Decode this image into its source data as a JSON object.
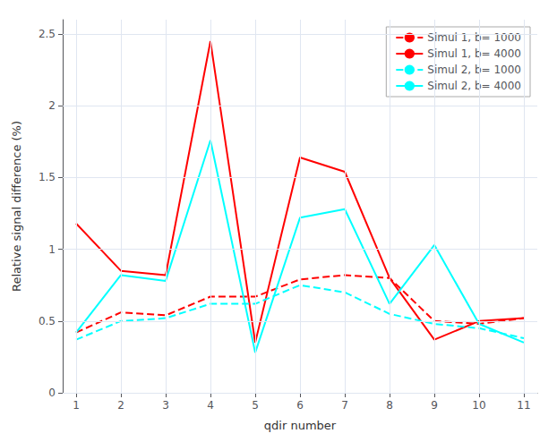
{
  "chart_data": {
    "type": "line",
    "xlabel": "qdir number",
    "ylabel": "Relative signal difference (%)",
    "x": [
      1,
      2,
      3,
      4,
      5,
      6,
      7,
      8,
      9,
      10,
      11
    ],
    "series": [
      {
        "name": "Simul 1, b= 1000",
        "color": "#ff0000",
        "line_style": "dashed",
        "values": [
          0.42,
          0.56,
          0.54,
          0.67,
          0.67,
          0.79,
          0.82,
          0.8,
          0.5,
          0.48,
          0.52
        ]
      },
      {
        "name": "Simul 1, b= 4000",
        "color": "#ff0000",
        "line_style": "solid",
        "values": [
          1.18,
          0.85,
          0.82,
          2.45,
          0.35,
          1.64,
          1.54,
          0.8,
          0.37,
          0.5,
          0.52
        ]
      },
      {
        "name": "Simul 2, b= 1000",
        "color": "#00ffff",
        "line_style": "dashed",
        "values": [
          0.37,
          0.5,
          0.52,
          0.62,
          0.62,
          0.75,
          0.7,
          0.55,
          0.48,
          0.45,
          0.38
        ]
      },
      {
        "name": "Simul 2, b= 4000",
        "color": "#00ffff",
        "line_style": "solid",
        "values": [
          0.42,
          0.82,
          0.78,
          1.76,
          0.28,
          1.22,
          1.28,
          0.62,
          1.03,
          0.48,
          0.35
        ]
      }
    ],
    "xlim": [
      0.7,
      11.3
    ],
    "ylim": [
      0,
      2.6
    ],
    "xticks": [
      1,
      2,
      3,
      4,
      5,
      6,
      7,
      8,
      9,
      10,
      11
    ],
    "yticks": [
      0,
      0.5,
      1,
      1.5,
      2,
      2.5
    ],
    "grid": true,
    "legend": "upper right"
  }
}
